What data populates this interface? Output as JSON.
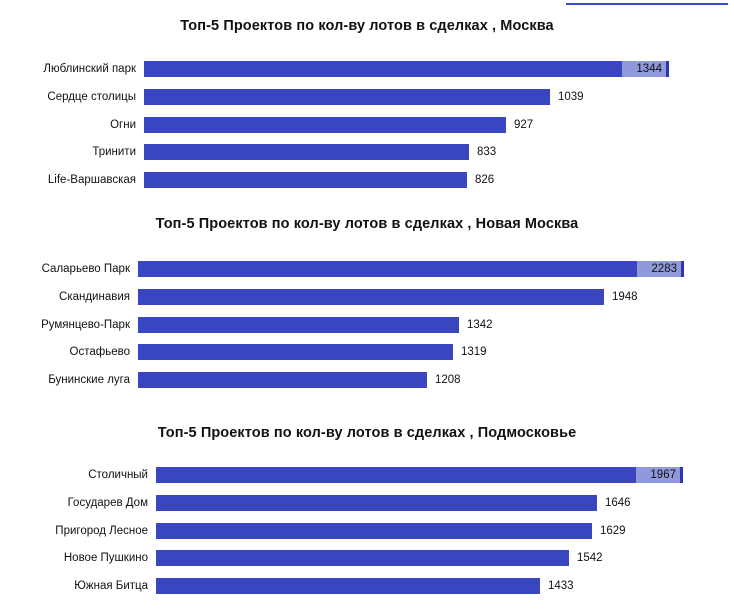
{
  "chart_data": [
    {
      "type": "bar",
      "orientation": "horizontal",
      "title": "Топ-5 Проектов по кол-ву лотов в сделках , Москва",
      "categories": [
        "Люблинский парк",
        "Сердце столицы",
        "Огни",
        "Тринити",
        "Life-Варшавская"
      ],
      "values": [
        1344,
        1039,
        927,
        833,
        826
      ],
      "labels": [
        "1344",
        "1039",
        "927",
        "833",
        "826"
      ],
      "color": "#3a45c0"
    },
    {
      "type": "bar",
      "orientation": "horizontal",
      "title": "Топ-5 Проектов по кол-ву лотов в сделках , Новая Москва",
      "categories": [
        "Саларьево Парк",
        "Скандинавия",
        "Румянцево-Парк",
        "Остафьево",
        "Бунинские луга"
      ],
      "values": [
        2283,
        1948,
        1342,
        1319,
        1208
      ],
      "labels": [
        "2283",
        "1948",
        "1342",
        "1319",
        "1208"
      ],
      "color": "#3a45c0"
    },
    {
      "type": "bar",
      "orientation": "horizontal",
      "title": "Топ-5 Проектов по кол-ву лотов в сделках , Подмосковье",
      "categories": [
        "Столичный",
        "Государев Дом",
        "Пригород Лесное",
        "Новое Пушкино",
        "Южная Битца"
      ],
      "values": [
        1967,
        1646,
        1629,
        1542,
        1433
      ],
      "labels": [
        "1967",
        "1646",
        "1629",
        "1542",
        "1433"
      ],
      "color": "#3a45c0"
    }
  ]
}
